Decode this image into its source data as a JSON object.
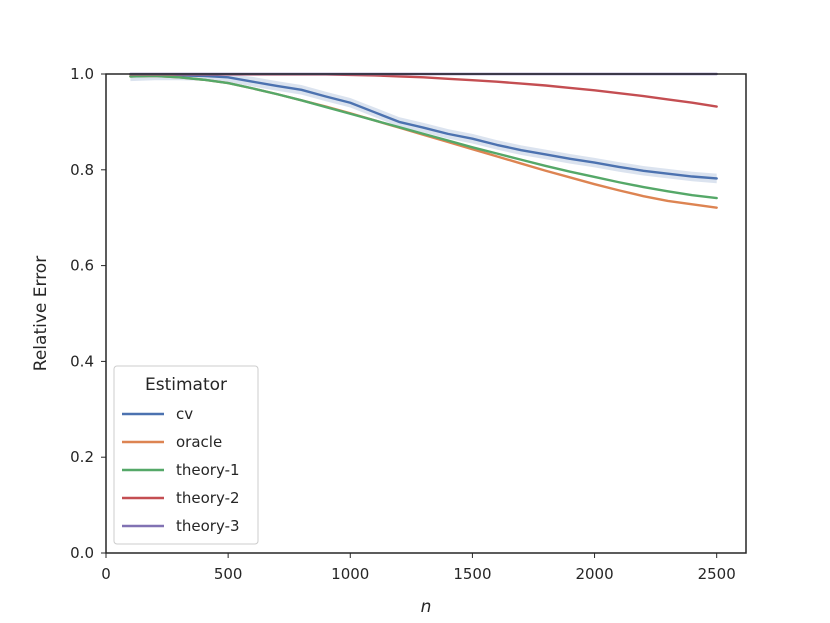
{
  "chart_data": {
    "type": "line",
    "title": "",
    "xlabel": "n",
    "ylabel": "Relative Error",
    "xlim": [
      0,
      2620
    ],
    "ylim": [
      0.0,
      1.0
    ],
    "xticks": [
      0,
      500,
      1000,
      1500,
      2000,
      2500
    ],
    "xtick_labels": [
      "0",
      "500",
      "1000",
      "1500",
      "2000",
      "2500"
    ],
    "yticks": [
      0.0,
      0.2,
      0.4,
      0.6,
      0.8,
      1.0
    ],
    "ytick_labels": [
      "0.0",
      "0.2",
      "0.4",
      "0.6",
      "0.8",
      "1.0"
    ],
    "grid": false,
    "legend": {
      "title": "Estimator",
      "placement": "lower-left"
    },
    "x": [
      100,
      200,
      300,
      400,
      500,
      600,
      700,
      800,
      900,
      1000,
      1100,
      1200,
      1300,
      1400,
      1500,
      1600,
      1700,
      1800,
      1900,
      2000,
      2100,
      2200,
      2300,
      2400,
      2500
    ],
    "series": [
      {
        "name": "cv",
        "color": "#4c72b0",
        "values": [
          0.995,
          0.997,
          0.997,
          0.996,
          0.993,
          0.984,
          0.975,
          0.967,
          0.953,
          0.94,
          0.92,
          0.9,
          0.888,
          0.875,
          0.865,
          0.852,
          0.841,
          0.832,
          0.823,
          0.815,
          0.806,
          0.798,
          0.792,
          0.786,
          0.782
        ],
        "band": 0.01
      },
      {
        "name": "oracle",
        "color": "#dd8452",
        "values": [
          0.995,
          0.996,
          0.993,
          0.988,
          0.981,
          0.97,
          0.958,
          0.945,
          0.932,
          0.918,
          0.903,
          0.888,
          0.873,
          0.858,
          0.843,
          0.828,
          0.813,
          0.798,
          0.784,
          0.77,
          0.757,
          0.745,
          0.735,
          0.728,
          0.721
        ],
        "band": 0
      },
      {
        "name": "theory-1",
        "color": "#55a868",
        "values": [
          0.995,
          0.996,
          0.993,
          0.988,
          0.981,
          0.97,
          0.958,
          0.945,
          0.931,
          0.917,
          0.903,
          0.889,
          0.875,
          0.861,
          0.847,
          0.834,
          0.821,
          0.808,
          0.796,
          0.785,
          0.774,
          0.764,
          0.755,
          0.747,
          0.741
        ],
        "band": 0
      },
      {
        "name": "theory-2",
        "color": "#c44e52",
        "values": [
          0.999,
          0.999,
          0.999,
          0.999,
          0.999,
          0.999,
          0.999,
          0.999,
          0.999,
          0.998,
          0.997,
          0.995,
          0.993,
          0.99,
          0.987,
          0.984,
          0.98,
          0.976,
          0.971,
          0.966,
          0.96,
          0.954,
          0.947,
          0.94,
          0.932
        ],
        "band": 0
      },
      {
        "name": "theory-3",
        "color": "#8172b3",
        "values": [
          1.0,
          1.0,
          1.0,
          1.0,
          1.0,
          1.0,
          1.0,
          1.0,
          1.0,
          1.0,
          1.0,
          1.0,
          1.0,
          1.0,
          1.0,
          1.0,
          1.0,
          1.0,
          1.0,
          1.0,
          1.0,
          1.0,
          1.0,
          1.0,
          1.0
        ],
        "band": 0
      }
    ]
  }
}
